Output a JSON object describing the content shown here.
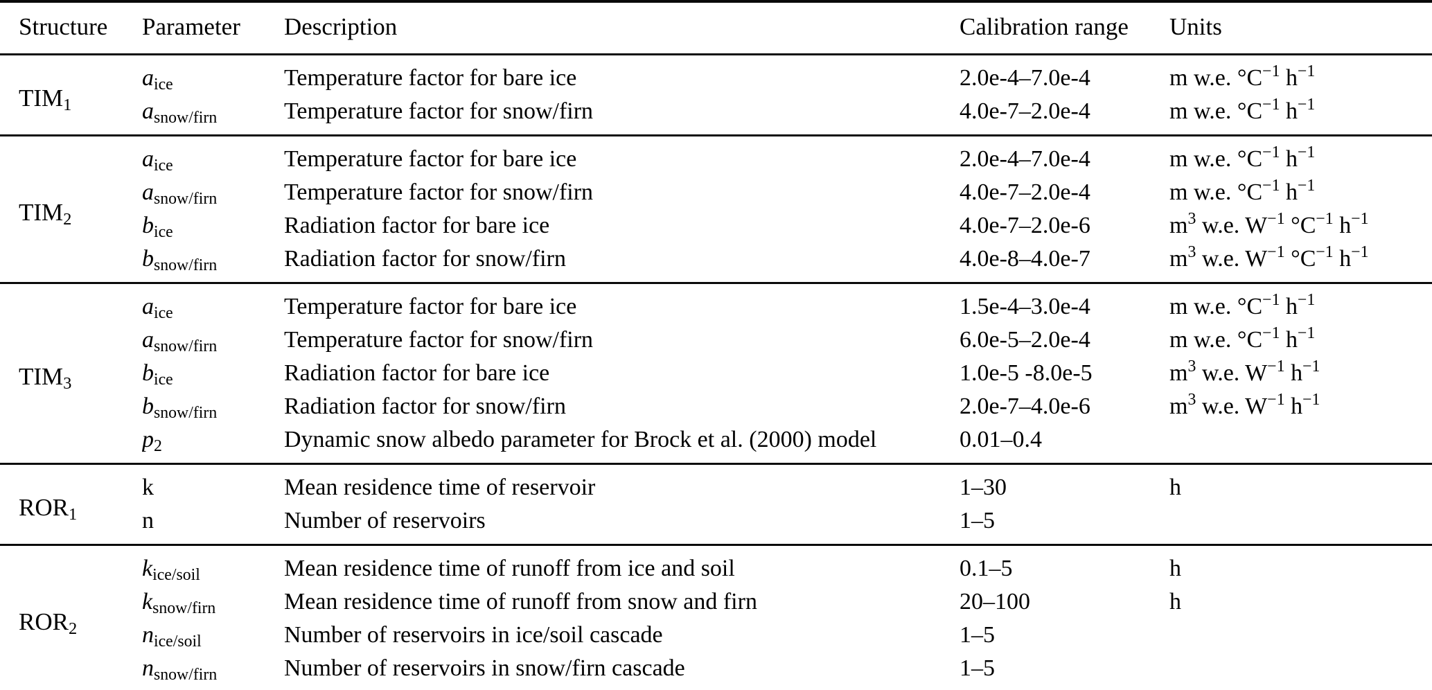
{
  "table": {
    "columns": [
      "Structure",
      "Parameter",
      "Description",
      "Calibration range",
      "Units"
    ],
    "sections": [
      {
        "id": "TIM1",
        "structure": "TIM_{1}",
        "rows": [
          {
            "parameter": "*a*_{ice}",
            "description": "Temperature factor for bare ice",
            "range": "2.0e-4–7.0e-4",
            "units": "m w.e. °C^{−1} h^{−1}"
          },
          {
            "parameter": "*a*_{snow/firn}",
            "description": "Temperature factor for snow/firn",
            "range": "4.0e-7–2.0e-4",
            "units": "m w.e. °C^{−1} h^{−1}"
          }
        ]
      },
      {
        "id": "TIM2",
        "structure": "TIM_{2}",
        "rows": [
          {
            "parameter": "*a*_{ice}",
            "description": "Temperature factor for bare ice",
            "range": "2.0e-4–7.0e-4",
            "units": "m w.e. °C^{−1} h^{−1}"
          },
          {
            "parameter": "*a*_{snow/firn}",
            "description": "Temperature factor for snow/firn",
            "range": "4.0e-7–2.0e-4",
            "units": "m w.e. °C^{−1} h^{−1}"
          },
          {
            "parameter": "*b*_{ice}",
            "description": "Radiation factor for bare ice",
            "range": "4.0e-7–2.0e-6",
            "units": "m^{3} w.e. W^{−1} °C^{−1} h^{−1}"
          },
          {
            "parameter": "*b*_{snow/firn}",
            "description": "Radiation factor for snow/firn",
            "range": "4.0e-8–4.0e-7",
            "units": "m^{3} w.e. W^{−1} °C^{−1} h^{−1}"
          }
        ]
      },
      {
        "id": "TIM3",
        "structure": "TIM_{3}",
        "rows": [
          {
            "parameter": "*a*_{ice}",
            "description": "Temperature factor for bare ice",
            "range": "1.5e-4–3.0e-4",
            "units": "m w.e. °C^{−1} h^{−1}"
          },
          {
            "parameter": "*a*_{snow/firn}",
            "description": "Temperature factor for snow/firn",
            "range": "6.0e-5–2.0e-4",
            "units": "m w.e. °C^{−1} h^{−1}"
          },
          {
            "parameter": "*b*_{ice}",
            "description": "Radiation factor for bare ice",
            "range": "1.0e-5 -8.0e-5",
            "units": "m^{3} w.e. W^{−1} h^{−1}"
          },
          {
            "parameter": "*b*_{snow/firn}",
            "description": "Radiation factor for snow/firn",
            "range": "2.0e-7–4.0e-6",
            "units": "m^{3} w.e. W^{−1} h^{−1}"
          },
          {
            "parameter": "*p*_{2}",
            "description": "Dynamic snow albedo parameter for Brock et al. (2000) model",
            "range": "0.01–0.4",
            "units": ""
          }
        ]
      },
      {
        "id": "ROR1",
        "structure": "ROR_{1}",
        "rows": [
          {
            "parameter": "k",
            "description": "Mean residence time of reservoir",
            "range": "1–30",
            "units": "h"
          },
          {
            "parameter": "n",
            "description": "Number of reservoirs",
            "range": "1–5",
            "units": ""
          }
        ]
      },
      {
        "id": "ROR2",
        "structure": "ROR_{2}",
        "rows": [
          {
            "parameter": "*k*_{ice/soil}",
            "description": "Mean residence time of runoff from ice and soil",
            "range": "0.1–5",
            "units": "h"
          },
          {
            "parameter": "*k*_{snow/firn}",
            "description": "Mean residence time of runoff from snow and firn",
            "range": "20–100",
            "units": "h"
          },
          {
            "parameter": "*n*_{ice/soil}",
            "description": "Number of reservoirs in ice/soil cascade",
            "range": "1–5",
            "units": ""
          },
          {
            "parameter": "*n*_{snow/firn}",
            "description": "Number of reservoirs in snow/firn cascade",
            "range": "1–5",
            "units": ""
          }
        ]
      }
    ]
  }
}
